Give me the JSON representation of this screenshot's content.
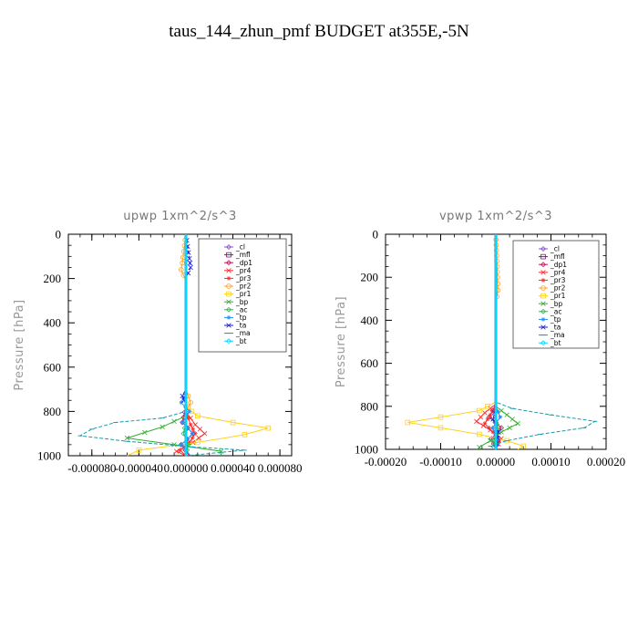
{
  "figure": {
    "title": "taus_144_zhun_pmf  BUDGET at355E,-5N"
  },
  "legend_entries": [
    {
      "name": "_cl",
      "color": "#8a4fd6",
      "marker": "diamond"
    },
    {
      "name": "_mfl",
      "color": "#7a1a7a",
      "marker": "square"
    },
    {
      "name": "_dp1",
      "color": "#c0145a",
      "marker": "diamond"
    },
    {
      "name": "_pr4",
      "color": "#ff2a2a",
      "marker": "cross"
    },
    {
      "name": "_pr3",
      "color": "#ff2a2a",
      "marker": "star"
    },
    {
      "name": "_pr2",
      "color": "#ffa020",
      "marker": "circle"
    },
    {
      "name": "_pr1",
      "color": "#ffd21a",
      "marker": "square"
    },
    {
      "name": "_bp",
      "color": "#30b030",
      "marker": "cross"
    },
    {
      "name": "_ac",
      "color": "#20c040",
      "marker": "diamond"
    },
    {
      "name": "_tp",
      "color": "#1e90ff",
      "marker": "star"
    },
    {
      "name": "_ta",
      "color": "#1a1ad0",
      "marker": "cross"
    },
    {
      "name": "_ma",
      "color": "#1a9aaa",
      "marker": "dash"
    },
    {
      "name": "_bt",
      "color": "#00d8ff",
      "marker": "diamond"
    }
  ],
  "chart_data": [
    {
      "type": "line",
      "title": "upwp   1xm^2/s^3",
      "ylabel": "Pressure [hPa]",
      "xlabel": "",
      "xlim": [
        -0.0001,
        9e-05
      ],
      "ylim": [
        1000,
        0
      ],
      "xticks": [
        -8e-05,
        -4e-05,
        0.0,
        4e-05,
        8e-05
      ],
      "xtick_labels": [
        "-0.000080",
        "-0.000040",
        "0.000000",
        "0.000040",
        "0.000080"
      ],
      "yticks": [
        0,
        200,
        400,
        600,
        800,
        1000
      ],
      "ytick_labels": [
        "0",
        "200",
        "400",
        "600",
        "800",
        "1000"
      ],
      "series": [
        {
          "name": "_cl",
          "points": [
            [
              0,
              0
            ],
            [
              0,
              1000
            ]
          ]
        },
        {
          "name": "_mfl",
          "points": [
            [
              0,
              0
            ],
            [
              0,
              1000
            ]
          ]
        },
        {
          "name": "_dp1",
          "points": [
            [
              0,
              0
            ],
            [
              0,
              780
            ],
            [
              -3e-06,
              850
            ],
            [
              6e-06,
              900
            ],
            [
              -4e-06,
              950
            ],
            [
              3e-06,
              1000
            ]
          ]
        },
        {
          "name": "_pr4",
          "points": [
            [
              0,
              0
            ],
            [
              0,
              800
            ],
            [
              8e-06,
              860
            ],
            [
              1.6e-05,
              900
            ],
            [
              6e-06,
              940
            ],
            [
              -8e-06,
              980
            ],
            [
              0,
              1000
            ]
          ]
        },
        {
          "name": "_pr3",
          "points": [
            [
              0,
              0
            ],
            [
              0,
              800
            ],
            [
              4e-06,
              860
            ],
            [
              8e-06,
              900
            ],
            [
              3e-06,
              940
            ],
            [
              -5e-06,
              975
            ],
            [
              0,
              1000
            ]
          ]
        },
        {
          "name": "_pr2",
          "points": [
            [
              0,
              0
            ],
            [
              -3e-06,
              130
            ],
            [
              -4e-06,
              160
            ],
            [
              0,
              210
            ],
            [
              0,
              700
            ],
            [
              4e-06,
              760
            ],
            [
              0,
              800
            ],
            [
              0,
              1000
            ]
          ]
        },
        {
          "name": "_pr1",
          "points": [
            [
              0,
              0
            ],
            [
              0,
              780
            ],
            [
              1e-05,
              820
            ],
            [
              4e-05,
              850
            ],
            [
              7e-05,
              875
            ],
            [
              5e-05,
              905
            ],
            [
              1e-05,
              940
            ],
            [
              -4e-05,
              975
            ],
            [
              -5e-05,
              1000
            ]
          ]
        },
        {
          "name": "_bp",
          "points": [
            [
              0,
              0
            ],
            [
              0,
              820
            ],
            [
              -2e-05,
              870
            ],
            [
              -5e-05,
              920
            ],
            [
              -1e-05,
              950
            ],
            [
              3e-05,
              980
            ],
            [
              3e-05,
              1000
            ]
          ]
        },
        {
          "name": "_ac",
          "points": [
            [
              0,
              0
            ],
            [
              0,
              850
            ],
            [
              -2e-06,
              900
            ],
            [
              2e-06,
              950
            ],
            [
              0,
              1000
            ]
          ]
        },
        {
          "name": "_tp",
          "points": [
            [
              0,
              0
            ],
            [
              0,
              720
            ],
            [
              -4e-06,
              760
            ],
            [
              3e-06,
              800
            ],
            [
              -3e-06,
              850
            ],
            [
              6e-06,
              900
            ],
            [
              -4e-06,
              950
            ],
            [
              4e-06,
              1000
            ]
          ]
        },
        {
          "name": "_ta",
          "points": [
            [
              0,
              0
            ],
            [
              3e-06,
              110
            ],
            [
              4e-06,
              150
            ],
            [
              0,
              200
            ],
            [
              0,
              700
            ],
            [
              -3e-06,
              730
            ],
            [
              0,
              770
            ],
            [
              0,
              1000
            ]
          ]
        },
        {
          "name": "_ma",
          "points": [
            [
              0,
              0
            ],
            [
              0,
              800
            ],
            [
              -2e-05,
              830
            ],
            [
              -6e-05,
              850
            ],
            [
              -8e-05,
              880
            ],
            [
              -9e-05,
              910
            ],
            [
              -5e-05,
              935
            ],
            [
              5e-06,
              960
            ],
            [
              5e-05,
              975
            ],
            [
              0,
              1000
            ]
          ]
        },
        {
          "name": "_bt",
          "points": [
            [
              0,
              0
            ],
            [
              0,
              1000
            ]
          ]
        }
      ]
    },
    {
      "type": "line",
      "title": "vpwp   1xm^2/s^3",
      "ylabel": "Pressure [hPa]",
      "xlabel": "",
      "xlim": [
        -0.0002,
        0.0002
      ],
      "ylim": [
        1000,
        0
      ],
      "xticks": [
        -0.0002,
        -0.0001,
        0.0,
        0.0001,
        0.0002
      ],
      "xtick_labels": [
        "-0.00020",
        "-0.00010",
        "0.00000",
        "0.00010",
        "0.00020"
      ],
      "yticks": [
        0,
        200,
        400,
        600,
        800,
        1000
      ],
      "ytick_labels": [
        "0",
        "200",
        "400",
        "600",
        "800",
        "1000"
      ],
      "series": [
        {
          "name": "_cl",
          "points": [
            [
              0,
              0
            ],
            [
              0,
              1000
            ]
          ]
        },
        {
          "name": "_mfl",
          "points": [
            [
              0,
              0
            ],
            [
              0,
              1000
            ]
          ]
        },
        {
          "name": "_dp1",
          "points": [
            [
              0,
              0
            ],
            [
              0,
              790
            ],
            [
              -1.2e-05,
              850
            ],
            [
              1e-05,
              900
            ],
            [
              -8e-06,
              950
            ],
            [
              0,
              1000
            ]
          ]
        },
        {
          "name": "_pr4",
          "points": [
            [
              0,
              0
            ],
            [
              0,
              790
            ],
            [
              -2e-05,
              830
            ],
            [
              -3.5e-05,
              870
            ],
            [
              -1e-05,
              910
            ],
            [
              1e-05,
              950
            ],
            [
              0,
              1000
            ]
          ]
        },
        {
          "name": "_pr3",
          "points": [
            [
              0,
              0
            ],
            [
              0,
              800
            ],
            [
              -1e-05,
              840
            ],
            [
              -2e-05,
              880
            ],
            [
              -5e-06,
              920
            ],
            [
              5e-06,
              960
            ],
            [
              0,
              1000
            ]
          ]
        },
        {
          "name": "_pr2",
          "points": [
            [
              0,
              0
            ],
            [
              3e-06,
              200
            ],
            [
              4e-06,
              260
            ],
            [
              0,
              320
            ],
            [
              0,
              1000
            ]
          ]
        },
        {
          "name": "_pr1",
          "points": [
            [
              0,
              0
            ],
            [
              0,
              780
            ],
            [
              -3e-05,
              820
            ],
            [
              -0.0001,
              850
            ],
            [
              -0.00016,
              875
            ],
            [
              -0.0001,
              900
            ],
            [
              -3e-05,
              930
            ],
            [
              2e-05,
              960
            ],
            [
              5e-05,
              985
            ],
            [
              4e-05,
              1000
            ]
          ]
        },
        {
          "name": "_bp",
          "points": [
            [
              0,
              0
            ],
            [
              0,
              800
            ],
            [
              2e-05,
              840
            ],
            [
              4e-05,
              880
            ],
            [
              1e-05,
              920
            ],
            [
              -1e-05,
              960
            ],
            [
              -3e-05,
              990
            ],
            [
              -3e-05,
              1000
            ]
          ]
        },
        {
          "name": "_ac",
          "points": [
            [
              0,
              0
            ],
            [
              0,
              860
            ],
            [
              4e-06,
              910
            ],
            [
              -4e-06,
              960
            ],
            [
              0,
              1000
            ]
          ]
        },
        {
          "name": "_tp",
          "points": [
            [
              0,
              0
            ],
            [
              0,
              800
            ],
            [
              8e-06,
              850
            ],
            [
              -6e-06,
              900
            ],
            [
              4e-06,
              950
            ],
            [
              0,
              1000
            ]
          ]
        },
        {
          "name": "_ta",
          "points": [
            [
              0,
              0
            ],
            [
              0,
              800
            ],
            [
              -5e-06,
              860
            ],
            [
              5e-06,
              920
            ],
            [
              0,
              1000
            ]
          ]
        },
        {
          "name": "_ma",
          "points": [
            [
              0,
              0
            ],
            [
              0,
              780
            ],
            [
              3e-05,
              810
            ],
            [
              0.0001,
              840
            ],
            [
              0.00018,
              870
            ],
            [
              0.00016,
              900
            ],
            [
              8e-05,
              930
            ],
            [
              2e-05,
              960
            ],
            [
              -1e-05,
              985
            ],
            [
              0,
              1000
            ]
          ]
        },
        {
          "name": "_bt",
          "points": [
            [
              0,
              0
            ],
            [
              0,
              1000
            ]
          ]
        }
      ]
    }
  ]
}
